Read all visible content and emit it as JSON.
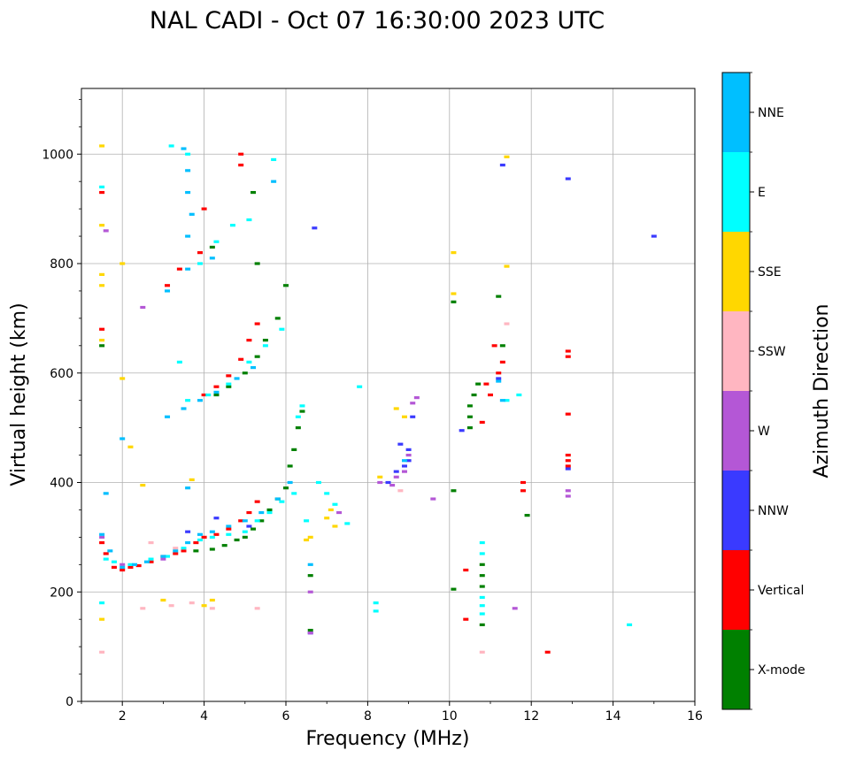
{
  "chart_data": {
    "type": "scatter",
    "title": "NAL CADI - Oct 07 16:30:00 2023 UTC",
    "xlabel": "Frequency (MHz)",
    "ylabel": "Virtual height (km)",
    "xlim": [
      1,
      16
    ],
    "ylim": [
      0,
      1120
    ],
    "grid": true,
    "x_ticks": [
      2,
      4,
      6,
      8,
      10,
      12,
      14,
      16
    ],
    "x_tick_labels": [
      "2",
      "4",
      "6",
      "8",
      "10",
      "12",
      "14",
      "16"
    ],
    "y_ticks": [
      0,
      200,
      400,
      600,
      800,
      1000
    ],
    "y_tick_labels": [
      "0",
      "200",
      "400",
      "600",
      "800",
      "1000"
    ],
    "colorbar": {
      "label": "Azimuth Direction",
      "categories": [
        {
          "name": "X-mode",
          "color": "#008000"
        },
        {
          "name": "Vertical",
          "color": "#ff0000"
        },
        {
          "name": "NNW",
          "color": "#3a3aff"
        },
        {
          "name": "W",
          "color": "#b457d6"
        },
        {
          "name": "SSW",
          "color": "#ffb6c1"
        },
        {
          "name": "SSE",
          "color": "#ffd700"
        },
        {
          "name": "E",
          "color": "#00ffff"
        },
        {
          "name": "NNE",
          "color": "#00bfff"
        }
      ]
    },
    "series": [
      {
        "name": "X-mode",
        "points": [
          [
            3.8,
            275
          ],
          [
            4.2,
            278
          ],
          [
            4.5,
            285
          ],
          [
            4.8,
            295
          ],
          [
            5.0,
            300
          ],
          [
            5.2,
            315
          ],
          [
            5.4,
            330
          ],
          [
            5.6,
            350
          ],
          [
            5.8,
            370
          ],
          [
            6.0,
            390
          ],
          [
            6.1,
            430
          ],
          [
            6.2,
            460
          ],
          [
            6.3,
            500
          ],
          [
            6.4,
            530
          ],
          [
            4.3,
            560
          ],
          [
            4.6,
            575
          ],
          [
            5.0,
            600
          ],
          [
            5.3,
            630
          ],
          [
            5.5,
            660
          ],
          [
            5.8,
            700
          ],
          [
            6.0,
            760
          ],
          [
            5.3,
            800
          ],
          [
            4.2,
            830
          ],
          [
            5.2,
            930
          ],
          [
            10.5,
            500
          ],
          [
            10.5,
            520
          ],
          [
            10.5,
            540
          ],
          [
            10.6,
            560
          ],
          [
            10.7,
            580
          ],
          [
            10.8,
            210
          ],
          [
            10.8,
            230
          ],
          [
            10.8,
            250
          ],
          [
            10.8,
            140
          ],
          [
            10.1,
            205
          ],
          [
            10.1,
            385
          ],
          [
            10.1,
            730
          ],
          [
            11.2,
            740
          ],
          [
            11.3,
            650
          ],
          [
            11.9,
            340
          ],
          [
            6.6,
            230
          ],
          [
            6.6,
            130
          ],
          [
            1.5,
            650
          ]
        ]
      },
      {
        "name": "Vertical",
        "points": [
          [
            1.5,
            290
          ],
          [
            1.6,
            270
          ],
          [
            1.8,
            245
          ],
          [
            2.0,
            240
          ],
          [
            2.2,
            245
          ],
          [
            2.4,
            248
          ],
          [
            2.7,
            255
          ],
          [
            3.0,
            265
          ],
          [
            3.3,
            270
          ],
          [
            3.5,
            275
          ],
          [
            3.8,
            290
          ],
          [
            4.0,
            300
          ],
          [
            4.3,
            305
          ],
          [
            4.6,
            315
          ],
          [
            4.9,
            330
          ],
          [
            5.1,
            345
          ],
          [
            5.3,
            365
          ],
          [
            4.0,
            560
          ],
          [
            4.3,
            575
          ],
          [
            4.6,
            595
          ],
          [
            4.9,
            625
          ],
          [
            5.1,
            660
          ],
          [
            5.3,
            690
          ],
          [
            3.1,
            760
          ],
          [
            3.4,
            790
          ],
          [
            3.9,
            820
          ],
          [
            4.0,
            900
          ],
          [
            4.9,
            1000
          ],
          [
            4.9,
            980
          ],
          [
            10.8,
            510
          ],
          [
            11.0,
            560
          ],
          [
            11.2,
            600
          ],
          [
            11.3,
            620
          ],
          [
            11.1,
            650
          ],
          [
            10.9,
            580
          ],
          [
            12.9,
            640
          ],
          [
            12.9,
            630
          ],
          [
            12.9,
            525
          ],
          [
            12.9,
            450
          ],
          [
            12.9,
            440
          ],
          [
            12.9,
            430
          ],
          [
            11.8,
            400
          ],
          [
            11.8,
            385
          ],
          [
            10.4,
            240
          ],
          [
            10.4,
            150
          ],
          [
            12.4,
            90
          ],
          [
            1.5,
            930
          ],
          [
            1.5,
            680
          ]
        ]
      },
      {
        "name": "NNW",
        "points": [
          [
            8.5,
            400
          ],
          [
            8.7,
            420
          ],
          [
            8.9,
            430
          ],
          [
            9.0,
            440
          ],
          [
            9.0,
            460
          ],
          [
            8.8,
            470
          ],
          [
            9.1,
            520
          ],
          [
            10.3,
            495
          ],
          [
            11.2,
            590
          ],
          [
            11.3,
            980
          ],
          [
            12.9,
            955
          ],
          [
            15.0,
            850
          ],
          [
            6.7,
            865
          ],
          [
            6.6,
            125
          ],
          [
            12.9,
            425
          ],
          [
            3.6,
            310
          ],
          [
            4.3,
            335
          ],
          [
            5.1,
            320
          ]
        ]
      },
      {
        "name": "W",
        "points": [
          [
            8.3,
            400
          ],
          [
            8.6,
            395
          ],
          [
            8.7,
            410
          ],
          [
            8.9,
            420
          ],
          [
            9.0,
            450
          ],
          [
            9.1,
            545
          ],
          [
            9.2,
            555
          ],
          [
            12.9,
            385
          ],
          [
            12.9,
            375
          ],
          [
            11.6,
            170
          ],
          [
            6.6,
            200
          ],
          [
            6.6,
            125
          ],
          [
            2.5,
            720
          ],
          [
            1.6,
            860
          ],
          [
            2.0,
            250
          ],
          [
            3.0,
            260
          ],
          [
            9.6,
            370
          ],
          [
            7.3,
            345
          ],
          [
            1.5,
            300
          ]
        ]
      },
      {
        "name": "SSW",
        "points": [
          [
            2.5,
            170
          ],
          [
            3.2,
            175
          ],
          [
            3.7,
            180
          ],
          [
            4.2,
            170
          ],
          [
            5.3,
            170
          ],
          [
            8.8,
            385
          ],
          [
            10.8,
            90
          ],
          [
            11.4,
            690
          ],
          [
            1.5,
            90
          ],
          [
            2.7,
            290
          ],
          [
            3.3,
            280
          ]
        ]
      },
      {
        "name": "SSE",
        "points": [
          [
            1.5,
            1015
          ],
          [
            1.5,
            870
          ],
          [
            1.5,
            780
          ],
          [
            1.5,
            760
          ],
          [
            1.5,
            660
          ],
          [
            1.5,
            150
          ],
          [
            2.0,
            800
          ],
          [
            2.2,
            465
          ],
          [
            2.0,
            590
          ],
          [
            2.5,
            395
          ],
          [
            3.0,
            185
          ],
          [
            3.7,
            405
          ],
          [
            4.2,
            185
          ],
          [
            4.0,
            175
          ],
          [
            6.5,
            295
          ],
          [
            6.6,
            300
          ],
          [
            7.0,
            335
          ],
          [
            7.1,
            350
          ],
          [
            7.2,
            320
          ],
          [
            8.7,
            535
          ],
          [
            8.9,
            520
          ],
          [
            10.1,
            820
          ],
          [
            10.1,
            745
          ],
          [
            11.4,
            995
          ],
          [
            11.4,
            795
          ],
          [
            8.3,
            410
          ]
        ]
      },
      {
        "name": "E",
        "points": [
          [
            1.6,
            260
          ],
          [
            1.8,
            255
          ],
          [
            2.2,
            250
          ],
          [
            2.7,
            260
          ],
          [
            3.1,
            265
          ],
          [
            3.5,
            280
          ],
          [
            3.9,
            295
          ],
          [
            4.2,
            300
          ],
          [
            4.6,
            305
          ],
          [
            5.0,
            310
          ],
          [
            5.3,
            330
          ],
          [
            5.6,
            345
          ],
          [
            5.9,
            365
          ],
          [
            6.2,
            380
          ],
          [
            6.5,
            330
          ],
          [
            6.8,
            400
          ],
          [
            7.0,
            380
          ],
          [
            7.2,
            360
          ],
          [
            7.5,
            325
          ],
          [
            3.6,
            550
          ],
          [
            4.1,
            560
          ],
          [
            4.6,
            580
          ],
          [
            5.1,
            620
          ],
          [
            5.5,
            650
          ],
          [
            5.9,
            680
          ],
          [
            3.4,
            620
          ],
          [
            3.9,
            800
          ],
          [
            4.3,
            840
          ],
          [
            4.7,
            870
          ],
          [
            5.1,
            880
          ],
          [
            5.7,
            990
          ],
          [
            3.2,
            1015
          ],
          [
            3.6,
            1000
          ],
          [
            8.2,
            180
          ],
          [
            8.2,
            165
          ],
          [
            10.8,
            290
          ],
          [
            10.8,
            270
          ],
          [
            10.8,
            190
          ],
          [
            10.8,
            175
          ],
          [
            10.8,
            160
          ],
          [
            11.4,
            550
          ],
          [
            11.7,
            560
          ],
          [
            14.4,
            140
          ],
          [
            1.5,
            940
          ],
          [
            1.5,
            180
          ],
          [
            6.4,
            540
          ],
          [
            6.3,
            520
          ],
          [
            7.8,
            575
          ]
        ]
      },
      {
        "name": "NNE",
        "points": [
          [
            1.5,
            305
          ],
          [
            1.7,
            275
          ],
          [
            2.0,
            245
          ],
          [
            2.3,
            250
          ],
          [
            2.6,
            255
          ],
          [
            3.0,
            265
          ],
          [
            3.3,
            275
          ],
          [
            3.6,
            290
          ],
          [
            3.9,
            305
          ],
          [
            4.2,
            310
          ],
          [
            4.6,
            320
          ],
          [
            5.0,
            330
          ],
          [
            5.4,
            345
          ],
          [
            5.8,
            370
          ],
          [
            6.1,
            400
          ],
          [
            3.1,
            520
          ],
          [
            3.5,
            535
          ],
          [
            3.9,
            550
          ],
          [
            4.3,
            565
          ],
          [
            4.8,
            590
          ],
          [
            5.2,
            610
          ],
          [
            3.1,
            750
          ],
          [
            3.6,
            790
          ],
          [
            4.2,
            810
          ],
          [
            3.5,
            1010
          ],
          [
            3.6,
            970
          ],
          [
            3.6,
            930
          ],
          [
            3.6,
            850
          ],
          [
            3.7,
            890
          ],
          [
            5.7,
            950
          ],
          [
            11.2,
            585
          ],
          [
            11.3,
            550
          ],
          [
            8.9,
            440
          ],
          [
            6.6,
            250
          ],
          [
            1.6,
            380
          ],
          [
            2.0,
            480
          ],
          [
            3.6,
            390
          ]
        ]
      }
    ]
  }
}
